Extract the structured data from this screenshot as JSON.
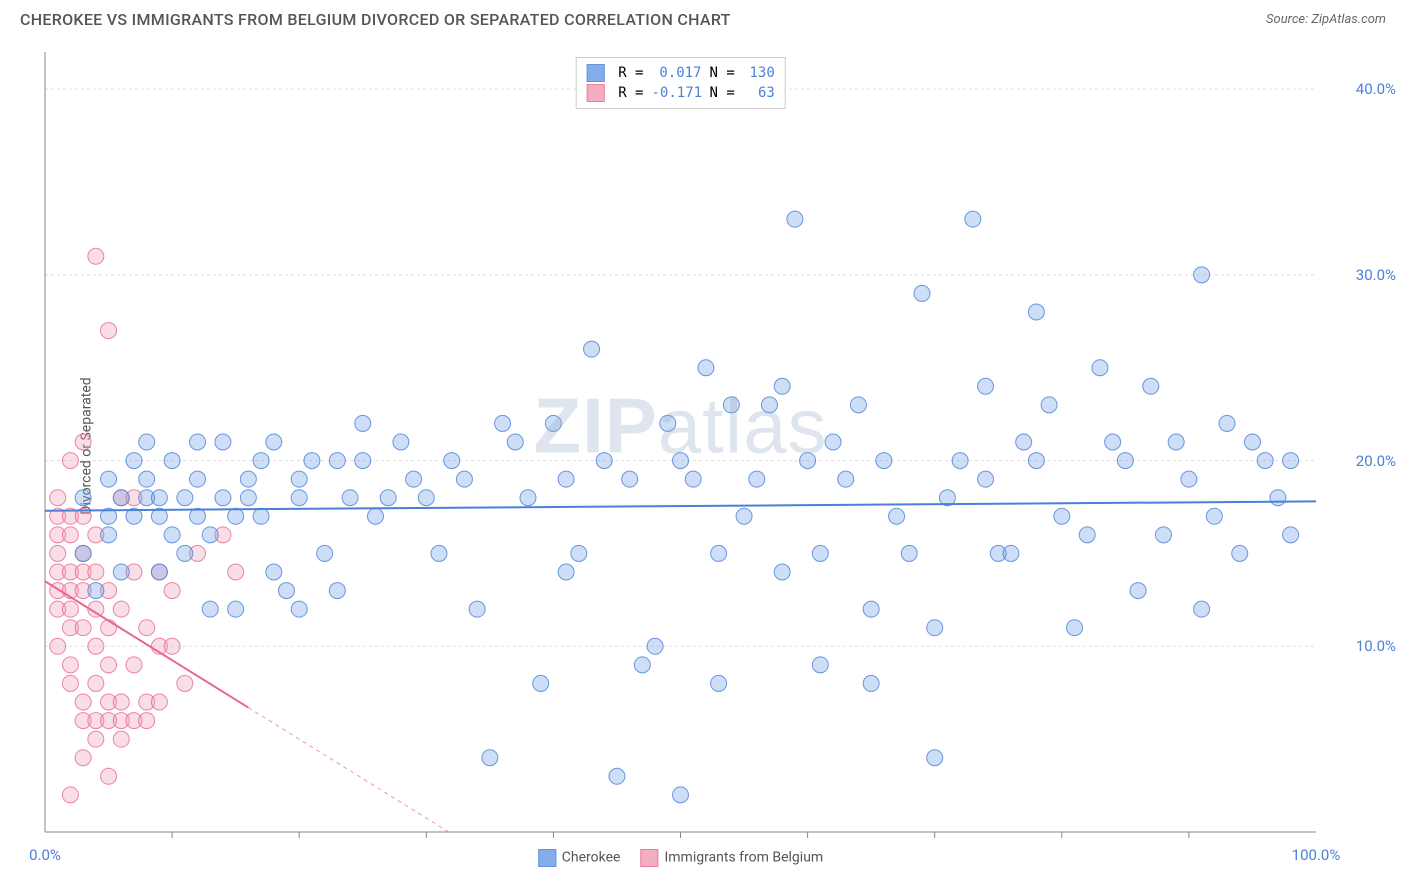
{
  "header": {
    "title": "CHEROKEE VS IMMIGRANTS FROM BELGIUM DIVORCED OR SEPARATED CORRELATION CHART",
    "source": "Source: ZipAtlas.com"
  },
  "watermark": {
    "bold": "ZIP",
    "light": "atlas"
  },
  "chart": {
    "type": "scatter",
    "y_axis_label": "Divorced or Separated",
    "xlim": [
      0,
      100
    ],
    "ylim": [
      0,
      42
    ],
    "x_ticks": [
      {
        "v": 0,
        "l": "0.0%"
      },
      {
        "v": 100,
        "l": "100.0%"
      }
    ],
    "x_minor_ticks": [
      10,
      20,
      30,
      40,
      50,
      60,
      70,
      80,
      90
    ],
    "y_ticks": [
      {
        "v": 10,
        "l": "10.0%"
      },
      {
        "v": 20,
        "l": "20.0%"
      },
      {
        "v": 30,
        "l": "30.0%"
      },
      {
        "v": 40,
        "l": "40.0%"
      }
    ],
    "axis_color": "#888888",
    "grid_color": "#dddddd",
    "grid_dash": "3,3",
    "tick_label_color": "#4a80d8",
    "background_color": "#ffffff",
    "marker_radius": 8,
    "marker_fill_opacity": 0.35,
    "line_width": 2,
    "series": {
      "a": {
        "label": "Cherokee",
        "color": "#6fa0e6",
        "stroke": "#4a80d8",
        "trend": {
          "y0": 17.3,
          "y100": 17.8,
          "solid_x_end": 100
        },
        "corr": {
          "R": "0.017",
          "N": "130"
        },
        "points": [
          [
            3,
            18
          ],
          [
            3,
            15
          ],
          [
            4,
            13
          ],
          [
            5,
            17
          ],
          [
            5,
            16
          ],
          [
            5,
            19
          ],
          [
            6,
            18
          ],
          [
            6,
            14
          ],
          [
            7,
            17
          ],
          [
            7,
            20
          ],
          [
            8,
            18
          ],
          [
            8,
            19
          ],
          [
            8,
            21
          ],
          [
            9,
            18
          ],
          [
            9,
            17
          ],
          [
            9,
            14
          ],
          [
            10,
            16
          ],
          [
            10,
            20
          ],
          [
            11,
            15
          ],
          [
            11,
            18
          ],
          [
            12,
            21
          ],
          [
            12,
            17
          ],
          [
            12,
            19
          ],
          [
            13,
            16
          ],
          [
            13,
            12
          ],
          [
            14,
            18
          ],
          [
            14,
            21
          ],
          [
            15,
            17
          ],
          [
            15,
            12
          ],
          [
            16,
            19
          ],
          [
            16,
            18
          ],
          [
            17,
            17
          ],
          [
            17,
            20
          ],
          [
            18,
            14
          ],
          [
            18,
            21
          ],
          [
            19,
            13
          ],
          [
            20,
            18
          ],
          [
            20,
            19
          ],
          [
            20,
            12
          ],
          [
            21,
            20
          ],
          [
            22,
            15
          ],
          [
            23,
            20
          ],
          [
            23,
            13
          ],
          [
            24,
            18
          ],
          [
            25,
            22
          ],
          [
            25,
            20
          ],
          [
            26,
            17
          ],
          [
            27,
            18
          ],
          [
            28,
            21
          ],
          [
            29,
            19
          ],
          [
            30,
            18
          ],
          [
            31,
            15
          ],
          [
            32,
            20
          ],
          [
            33,
            19
          ],
          [
            34,
            12
          ],
          [
            35,
            4
          ],
          [
            36,
            22
          ],
          [
            37,
            21
          ],
          [
            38,
            18
          ],
          [
            39,
            8
          ],
          [
            40,
            22
          ],
          [
            41,
            19
          ],
          [
            41,
            14
          ],
          [
            42,
            15
          ],
          [
            43,
            26
          ],
          [
            44,
            20
          ],
          [
            45,
            3
          ],
          [
            46,
            19
          ],
          [
            47,
            9
          ],
          [
            48,
            10
          ],
          [
            49,
            22
          ],
          [
            50,
            20
          ],
          [
            50,
            2
          ],
          [
            51,
            19
          ],
          [
            52,
            25
          ],
          [
            53,
            15
          ],
          [
            53,
            8
          ],
          [
            54,
            23
          ],
          [
            55,
            17
          ],
          [
            56,
            19
          ],
          [
            57,
            23
          ],
          [
            58,
            14
          ],
          [
            58,
            24
          ],
          [
            59,
            33
          ],
          [
            60,
            20
          ],
          [
            61,
            15
          ],
          [
            61,
            9
          ],
          [
            62,
            21
          ],
          [
            63,
            19
          ],
          [
            64,
            23
          ],
          [
            65,
            12
          ],
          [
            65,
            8
          ],
          [
            66,
            20
          ],
          [
            67,
            17
          ],
          [
            68,
            15
          ],
          [
            69,
            29
          ],
          [
            70,
            11
          ],
          [
            70,
            4
          ],
          [
            71,
            18
          ],
          [
            72,
            20
          ],
          [
            73,
            33
          ],
          [
            74,
            24
          ],
          [
            74,
            19
          ],
          [
            75,
            15
          ],
          [
            76,
            15
          ],
          [
            77,
            21
          ],
          [
            78,
            20
          ],
          [
            78,
            28
          ],
          [
            79,
            23
          ],
          [
            80,
            17
          ],
          [
            81,
            11
          ],
          [
            82,
            16
          ],
          [
            83,
            25
          ],
          [
            84,
            21
          ],
          [
            85,
            20
          ],
          [
            86,
            13
          ],
          [
            87,
            24
          ],
          [
            88,
            16
          ],
          [
            89,
            21
          ],
          [
            90,
            19
          ],
          [
            91,
            30
          ],
          [
            91,
            12
          ],
          [
            92,
            17
          ],
          [
            93,
            22
          ],
          [
            94,
            15
          ],
          [
            95,
            21
          ],
          [
            96,
            20
          ],
          [
            97,
            18
          ],
          [
            98,
            20
          ],
          [
            98,
            16
          ]
        ]
      },
      "b": {
        "label": "Immigrants from Belgium",
        "color": "#f2a0b8",
        "stroke": "#e86890",
        "trend": {
          "y0": 13.5,
          "y100": -29,
          "solid_x_end": 16
        },
        "corr": {
          "R": "-0.171",
          "N": "63"
        },
        "points": [
          [
            1,
            13
          ],
          [
            1,
            14
          ],
          [
            1,
            17
          ],
          [
            1,
            10
          ],
          [
            1,
            12
          ],
          [
            1,
            16
          ],
          [
            1,
            18
          ],
          [
            1,
            15
          ],
          [
            2,
            13
          ],
          [
            2,
            9
          ],
          [
            2,
            12
          ],
          [
            2,
            16
          ],
          [
            2,
            14
          ],
          [
            2,
            11
          ],
          [
            2,
            8
          ],
          [
            2,
            17
          ],
          [
            2,
            20
          ],
          [
            3,
            14
          ],
          [
            3,
            6
          ],
          [
            3,
            11
          ],
          [
            3,
            13
          ],
          [
            3,
            15
          ],
          [
            3,
            17
          ],
          [
            3,
            21
          ],
          [
            3,
            7
          ],
          [
            3,
            4
          ],
          [
            4,
            12
          ],
          [
            4,
            10
          ],
          [
            4,
            14
          ],
          [
            4,
            16
          ],
          [
            4,
            6
          ],
          [
            4,
            5
          ],
          [
            4,
            8
          ],
          [
            5,
            11
          ],
          [
            5,
            9
          ],
          [
            5,
            27
          ],
          [
            5,
            6
          ],
          [
            5,
            7
          ],
          [
            5,
            13
          ],
          [
            5,
            3
          ],
          [
            6,
            12
          ],
          [
            6,
            7
          ],
          [
            6,
            18
          ],
          [
            6,
            5
          ],
          [
            6,
            6
          ],
          [
            7,
            9
          ],
          [
            7,
            18
          ],
          [
            7,
            6
          ],
          [
            7,
            14
          ],
          [
            4,
            31
          ],
          [
            8,
            7
          ],
          [
            8,
            11
          ],
          [
            8,
            6
          ],
          [
            9,
            10
          ],
          [
            9,
            14
          ],
          [
            9,
            7
          ],
          [
            10,
            13
          ],
          [
            10,
            10
          ],
          [
            11,
            8
          ],
          [
            12,
            15
          ],
          [
            14,
            16
          ],
          [
            15,
            14
          ],
          [
            2,
            2
          ]
        ]
      }
    }
  },
  "top_legend": {
    "R_label": "R =",
    "N_label": "N ="
  },
  "bottom_legend": {
    "order": [
      "a",
      "b"
    ]
  }
}
